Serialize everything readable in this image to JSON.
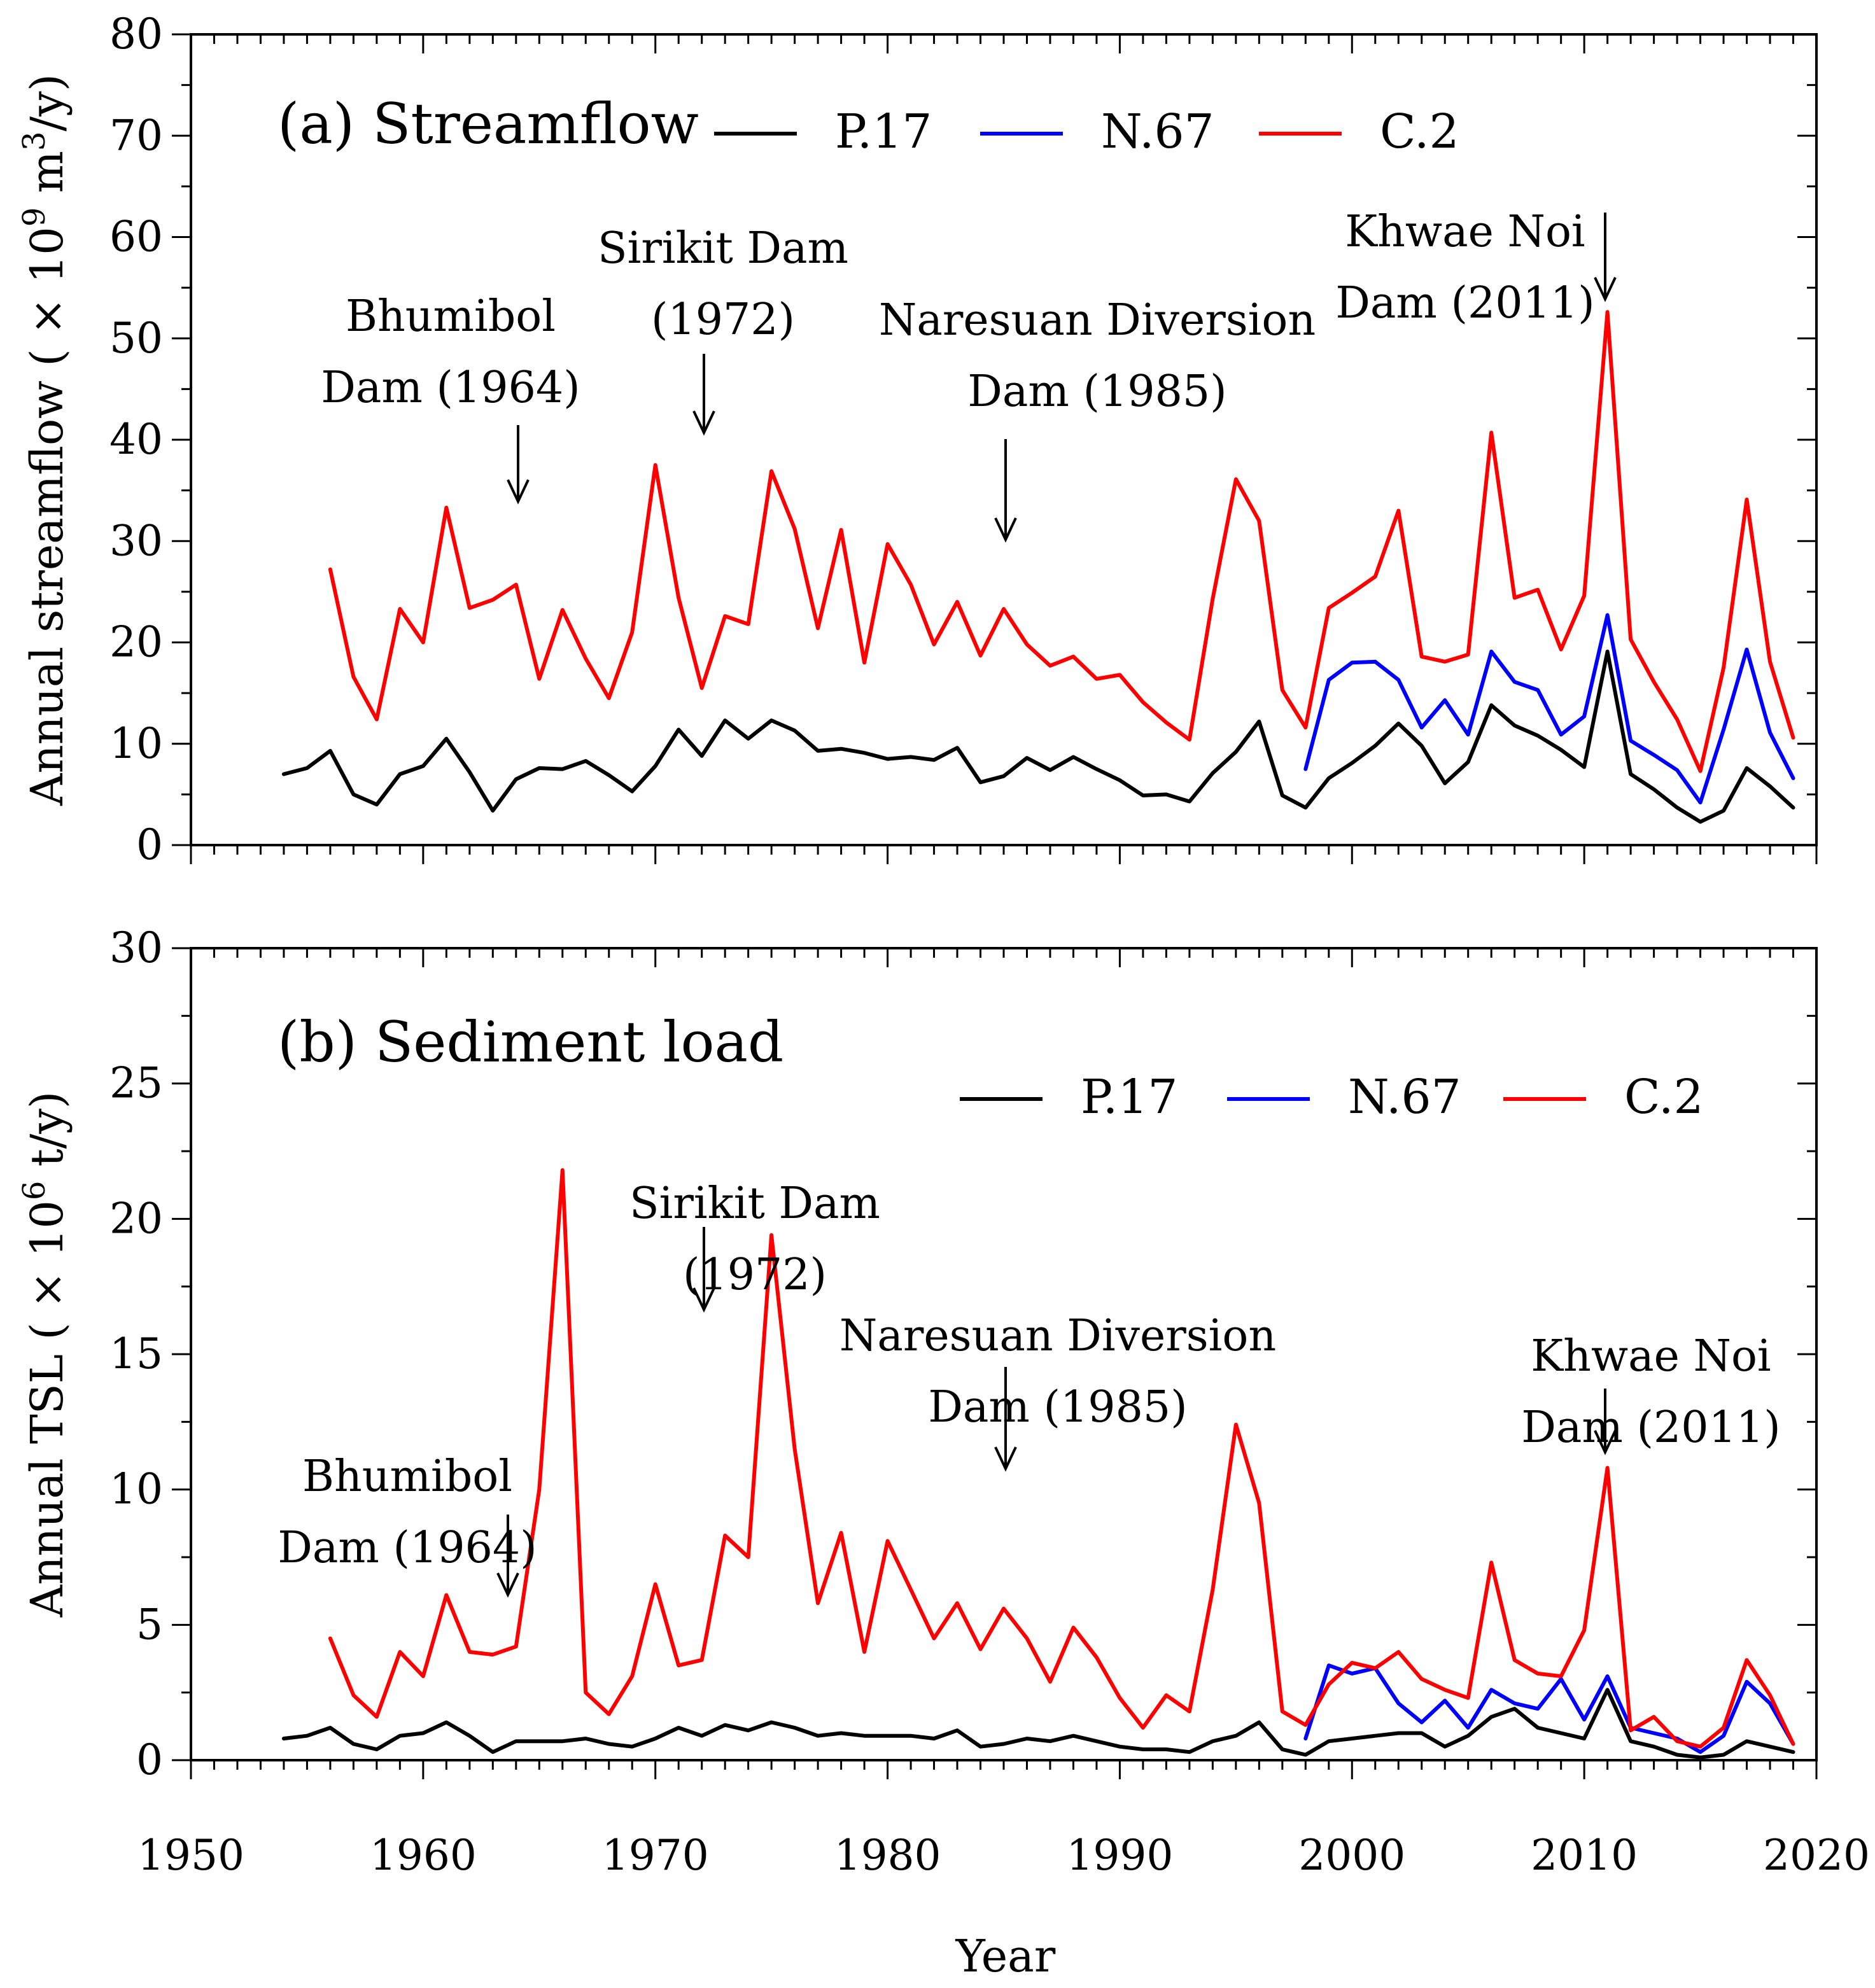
{
  "figure": {
    "xlabel": "Year",
    "x_tick_labels": [
      "1950",
      "1960",
      "1970",
      "1980",
      "1990",
      "2000",
      "2010",
      "2020"
    ]
  },
  "chart_data": [
    {
      "type": "line",
      "title": "(a) Streamflow",
      "ylabel": "Annual streamflow ( × 10",
      "ylabel_sup": "9",
      "ylabel_unit": " m",
      "ylabel_unit_sup": "3",
      "ylabel_tail": "/y)",
      "xlim": [
        1950,
        2020
      ],
      "ylim": [
        0,
        80
      ],
      "yticks": [
        0,
        10,
        20,
        30,
        40,
        50,
        60,
        70,
        80
      ],
      "y_tick_labels": [
        "0",
        "10",
        "20",
        "30",
        "40",
        "50",
        "60",
        "70",
        "80"
      ],
      "grid": false,
      "legend_position": "top-right",
      "series": [
        {
          "name": "P.17",
          "color": "#000000",
          "x": [
            1954,
            1955,
            1956,
            1957,
            1958,
            1959,
            1960,
            1961,
            1962,
            1963,
            1964,
            1965,
            1966,
            1967,
            1968,
            1969,
            1970,
            1971,
            1972,
            1973,
            1974,
            1975,
            1976,
            1977,
            1978,
            1979,
            1980,
            1981,
            1982,
            1983,
            1984,
            1985,
            1986,
            1987,
            1988,
            1989,
            1990,
            1991,
            1992,
            1993,
            1994,
            1995,
            1996,
            1997,
            1998,
            1999,
            2000,
            2001,
            2002,
            2003,
            2004,
            2005,
            2006,
            2007,
            2008,
            2009,
            2010,
            2011,
            2012,
            2013,
            2014,
            2015,
            2016,
            2017,
            2018,
            2019
          ],
          "values": [
            7.0,
            7.6,
            9.3,
            5.0,
            4.0,
            7.0,
            7.8,
            10.5,
            7.2,
            3.4,
            6.5,
            7.6,
            7.5,
            8.3,
            6.9,
            5.3,
            7.8,
            11.4,
            8.8,
            12.3,
            10.5,
            12.3,
            11.3,
            9.3,
            9.5,
            9.1,
            8.5,
            8.7,
            8.4,
            9.6,
            6.2,
            6.8,
            8.6,
            7.4,
            8.7,
            7.5,
            6.4,
            4.9,
            5.0,
            4.3,
            7.1,
            9.2,
            12.2,
            4.9,
            3.7,
            6.6,
            8.1,
            9.8,
            12.0,
            9.8,
            6.1,
            8.2,
            13.8,
            11.8,
            10.8,
            9.4,
            7.7,
            19.1,
            7.0,
            5.5,
            3.7,
            2.3,
            3.4,
            7.6,
            5.8,
            3.7
          ]
        },
        {
          "name": "N.67",
          "color": "#0000ff",
          "x": [
            1998,
            1999,
            2000,
            2001,
            2002,
            2003,
            2004,
            2005,
            2006,
            2007,
            2008,
            2009,
            2010,
            2011,
            2012,
            2013,
            2014,
            2015,
            2016,
            2017,
            2018,
            2019
          ],
          "values": [
            7.5,
            16.3,
            18.0,
            18.1,
            16.3,
            11.6,
            14.3,
            10.9,
            19.1,
            16.1,
            15.3,
            10.9,
            12.7,
            22.7,
            10.3,
            8.9,
            7.4,
            4.2,
            11.4,
            19.3,
            11.1,
            6.6
          ]
        },
        {
          "name": "C.2",
          "color": "#ff0000",
          "x": [
            1956,
            1957,
            1958,
            1959,
            1960,
            1961,
            1962,
            1963,
            1964,
            1965,
            1966,
            1967,
            1968,
            1969,
            1970,
            1971,
            1972,
            1973,
            1974,
            1975,
            1976,
            1977,
            1978,
            1979,
            1980,
            1981,
            1982,
            1983,
            1984,
            1985,
            1986,
            1987,
            1988,
            1989,
            1990,
            1991,
            1992,
            1993,
            1994,
            1995,
            1996,
            1997,
            1998,
            1999,
            2000,
            2001,
            2002,
            2003,
            2004,
            2005,
            2006,
            2007,
            2008,
            2009,
            2010,
            2011,
            2012,
            2013,
            2014,
            2015,
            2016,
            2017,
            2018,
            2019
          ],
          "values": [
            27.2,
            16.6,
            12.4,
            23.3,
            20.0,
            33.3,
            23.4,
            24.2,
            25.7,
            16.4,
            23.2,
            18.4,
            14.5,
            21.0,
            37.5,
            24.4,
            15.5,
            22.6,
            21.8,
            36.9,
            31.2,
            21.4,
            31.1,
            18.0,
            29.7,
            25.7,
            19.8,
            24.0,
            18.7,
            23.3,
            19.8,
            17.7,
            18.6,
            16.4,
            16.8,
            14.1,
            12.1,
            10.4,
            24.3,
            36.1,
            32.0,
            15.3,
            11.6,
            23.4,
            24.9,
            26.5,
            33.0,
            18.6,
            18.1,
            18.8,
            40.7,
            24.4,
            25.2,
            19.3,
            24.6,
            52.6,
            20.3,
            16.1,
            12.4,
            7.3,
            17.5,
            34.1,
            18.1,
            10.6
          ]
        }
      ],
      "annotations": [
        {
          "lines": [
            "Bhumibol",
            "Dam (1964)"
          ],
          "year": 1964
        },
        {
          "lines": [
            "Sirikit Dam",
            "(1972)"
          ],
          "year": 1972
        },
        {
          "lines": [
            "Naresuan Diversion",
            "Dam (1985)"
          ],
          "year": 1985
        },
        {
          "lines": [
            "Khwae Noi",
            "Dam (2011)"
          ],
          "year": 2011
        }
      ]
    },
    {
      "type": "line",
      "title": "(b) Sediment load",
      "ylabel": "Annual TSL ( × 10",
      "ylabel_sup": "6",
      "ylabel_unit": " t/y)",
      "ylabel_unit_sup": "",
      "ylabel_tail": "",
      "xlim": [
        1950,
        2020
      ],
      "ylim": [
        0,
        30
      ],
      "yticks": [
        0,
        5,
        10,
        15,
        20,
        25,
        30
      ],
      "y_tick_labels": [
        "0",
        "5",
        "10",
        "15",
        "20",
        "25",
        "30"
      ],
      "grid": false,
      "legend_position": "top-right",
      "series": [
        {
          "name": "P.17",
          "color": "#000000",
          "x": [
            1954,
            1955,
            1956,
            1957,
            1958,
            1959,
            1960,
            1961,
            1962,
            1963,
            1964,
            1965,
            1966,
            1967,
            1968,
            1969,
            1970,
            1971,
            1972,
            1973,
            1974,
            1975,
            1976,
            1977,
            1978,
            1979,
            1980,
            1981,
            1982,
            1983,
            1984,
            1985,
            1986,
            1987,
            1988,
            1989,
            1990,
            1991,
            1992,
            1993,
            1994,
            1995,
            1996,
            1997,
            1998,
            1999,
            2000,
            2001,
            2002,
            2003,
            2004,
            2005,
            2006,
            2007,
            2008,
            2009,
            2010,
            2011,
            2012,
            2013,
            2014,
            2015,
            2016,
            2017,
            2018,
            2019
          ],
          "values": [
            0.8,
            0.9,
            1.2,
            0.6,
            0.4,
            0.9,
            1.0,
            1.4,
            0.9,
            0.3,
            0.7,
            0.7,
            0.7,
            0.8,
            0.6,
            0.5,
            0.8,
            1.2,
            0.9,
            1.3,
            1.1,
            1.4,
            1.2,
            0.9,
            1.0,
            0.9,
            0.9,
            0.9,
            0.8,
            1.1,
            0.5,
            0.6,
            0.8,
            0.7,
            0.9,
            0.7,
            0.5,
            0.4,
            0.4,
            0.3,
            0.7,
            0.9,
            1.4,
            0.4,
            0.2,
            0.7,
            0.8,
            0.9,
            1.0,
            1.0,
            0.5,
            0.9,
            1.6,
            1.9,
            1.2,
            1.0,
            0.8,
            2.6,
            0.7,
            0.5,
            0.2,
            0.1,
            0.2,
            0.7,
            0.5,
            0.3
          ]
        },
        {
          "name": "N.67",
          "color": "#0000ff",
          "x": [
            1998,
            1999,
            2000,
            2001,
            2002,
            2003,
            2004,
            2005,
            2006,
            2007,
            2008,
            2009,
            2010,
            2011,
            2012,
            2013,
            2014,
            2015,
            2016,
            2017,
            2018,
            2019
          ],
          "values": [
            0.8,
            3.5,
            3.2,
            3.4,
            2.1,
            1.4,
            2.2,
            1.2,
            2.6,
            2.1,
            1.9,
            3.0,
            1.5,
            3.1,
            1.2,
            1.0,
            0.8,
            0.3,
            0.9,
            2.9,
            2.1,
            0.6
          ]
        },
        {
          "name": "C.2",
          "color": "#ff0000",
          "x": [
            1956,
            1957,
            1958,
            1959,
            1960,
            1961,
            1962,
            1963,
            1964,
            1965,
            1966,
            1967,
            1968,
            1969,
            1970,
            1971,
            1972,
            1973,
            1974,
            1975,
            1976,
            1977,
            1978,
            1979,
            1980,
            1981,
            1982,
            1983,
            1984,
            1985,
            1986,
            1987,
            1988,
            1989,
            1990,
            1991,
            1992,
            1993,
            1994,
            1995,
            1996,
            1997,
            1998,
            1999,
            2000,
            2001,
            2002,
            2003,
            2004,
            2005,
            2006,
            2007,
            2008,
            2009,
            2010,
            2011,
            2012,
            2013,
            2014,
            2015,
            2016,
            2017,
            2018,
            2019
          ],
          "values": [
            4.5,
            2.4,
            1.6,
            4.0,
            3.1,
            6.1,
            4.0,
            3.9,
            4.2,
            10.0,
            21.8,
            2.5,
            1.7,
            3.1,
            6.5,
            3.5,
            3.7,
            8.3,
            7.5,
            19.4,
            11.5,
            5.8,
            8.4,
            4.0,
            8.1,
            6.3,
            4.5,
            5.8,
            4.1,
            5.6,
            4.5,
            2.9,
            4.9,
            3.8,
            2.3,
            1.2,
            2.4,
            1.8,
            6.3,
            12.4,
            9.5,
            1.8,
            1.3,
            2.8,
            3.6,
            3.4,
            4.0,
            3.0,
            2.6,
            2.3,
            7.3,
            3.7,
            3.2,
            3.1,
            4.8,
            10.8,
            1.1,
            1.6,
            0.7,
            0.5,
            1.2,
            3.7,
            2.4,
            0.6
          ]
        }
      ],
      "annotations": [
        {
          "lines": [
            "Bhumibol",
            "Dam (1964)"
          ],
          "year": 1964
        },
        {
          "lines": [
            "Sirikit Dam",
            "(1972)"
          ],
          "year": 1972
        },
        {
          "lines": [
            "Naresuan Diversion",
            "Dam (1985)"
          ],
          "year": 1985
        },
        {
          "lines": [
            "Khwae Noi",
            "Dam (2011)"
          ],
          "year": 2011
        }
      ]
    }
  ]
}
